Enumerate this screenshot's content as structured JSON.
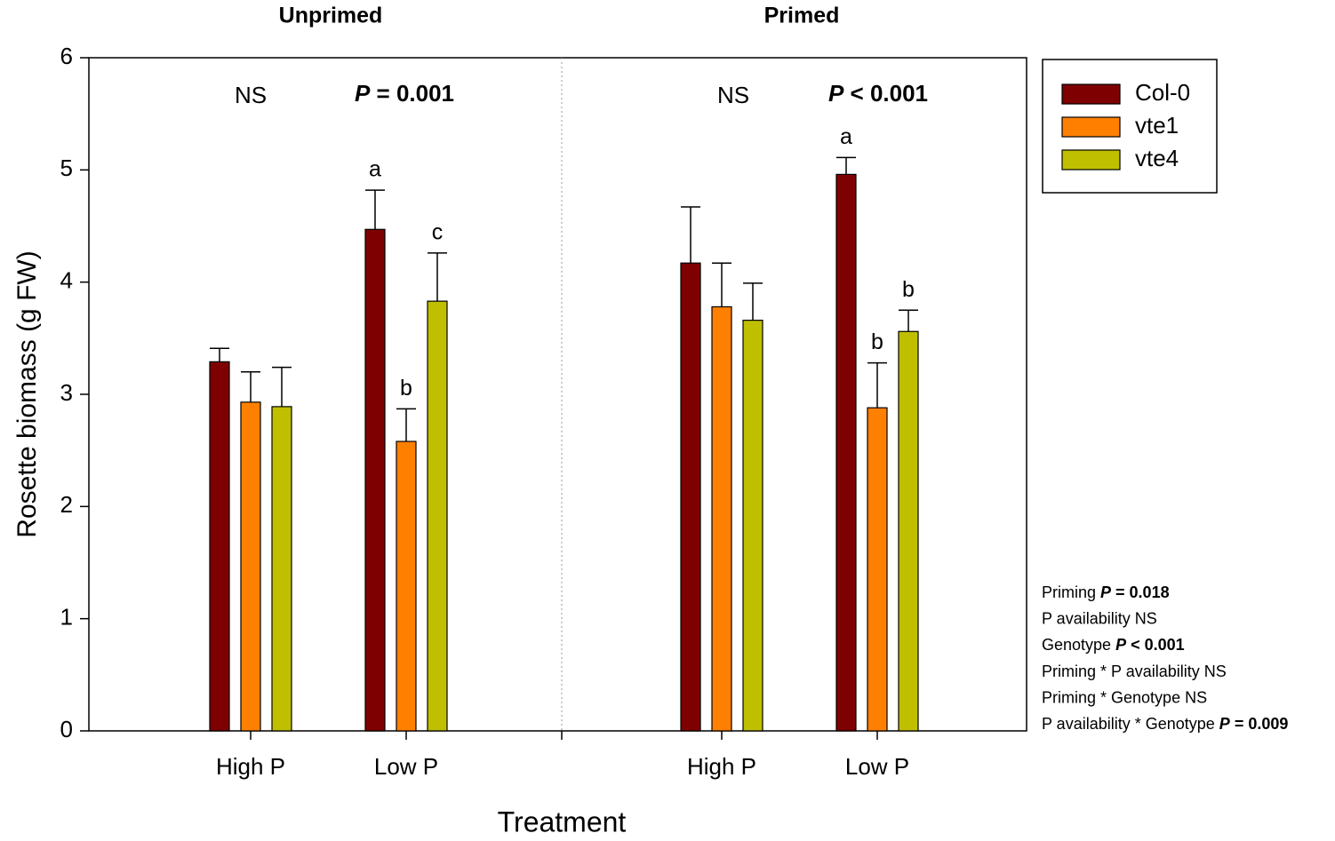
{
  "chart_data": {
    "type": "bar",
    "panels": [
      "Unprimed",
      "Primed"
    ],
    "categories": [
      "High P",
      "Low P",
      "High P",
      "Low P"
    ],
    "series": [
      {
        "name": "Col-0",
        "color": "#7f0000",
        "values": [
          3.29,
          4.47,
          4.17,
          4.96
        ],
        "errors": [
          0.12,
          0.35,
          0.5,
          0.15
        ],
        "letters": [
          null,
          "a",
          null,
          "a"
        ]
      },
      {
        "name": "vte1",
        "color": "#ff8000",
        "values": [
          2.93,
          2.58,
          3.78,
          2.88
        ],
        "errors": [
          0.27,
          0.29,
          0.39,
          0.4
        ],
        "letters": [
          null,
          "b",
          null,
          "b"
        ]
      },
      {
        "name": "vte4",
        "color": "#bfbf00",
        "values": [
          2.89,
          3.83,
          3.66,
          3.56
        ],
        "errors": [
          0.35,
          0.43,
          0.33,
          0.19
        ],
        "letters": [
          null,
          "c",
          null,
          "b"
        ]
      }
    ],
    "group_notes": [
      {
        "text": "NS"
      },
      {
        "symbol": "P",
        "text": " = 0.001"
      },
      {
        "text": "NS"
      },
      {
        "symbol": "P",
        "text": " < 0.001"
      }
    ],
    "side_notes": [
      {
        "text": "Priming ",
        "symbol": "P",
        "stat": " = 0.018"
      },
      {
        "text": "P availability NS"
      },
      {
        "text": "Genotype  ",
        "symbol": "P",
        "stat": " < 0.001"
      },
      {
        "text": "Priming * P availability NS"
      },
      {
        "text": "Priming * Genotype NS"
      },
      {
        "text": "P availability * Genotype  ",
        "symbol": "P",
        "stat": " = 0.009"
      }
    ],
    "xlabel": "Treatment",
    "ylabel": "Rosette biomass (g FW)",
    "ylim": [
      0,
      6
    ],
    "yticks": [
      0,
      1,
      2,
      3,
      4,
      5,
      6
    ],
    "legend": "upper right"
  }
}
